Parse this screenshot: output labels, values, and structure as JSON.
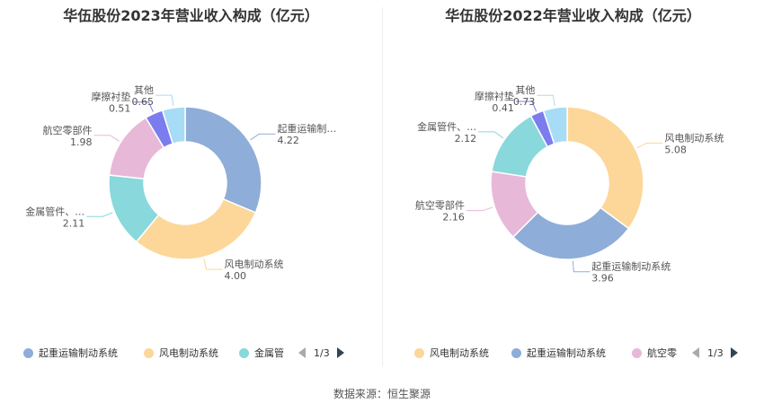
{
  "source_text": "数据来源：恒生聚源",
  "chart_data": [
    {
      "type": "pie",
      "variant": "donut",
      "title": "华伍股份2023年营业收入构成（亿元）",
      "slices": [
        {
          "name": "起重运输制动系统",
          "label": "起重运输制…",
          "value": 4.22,
          "value_text": "4.22",
          "color": "#8eadd8"
        },
        {
          "name": "风电制动系统",
          "label": "风电制动系统",
          "value": 4.0,
          "value_text": "4.00",
          "color": "#fcd799"
        },
        {
          "name": "金属管件",
          "label": "金属管件、…",
          "value": 2.11,
          "value_text": "2.11",
          "color": "#89d8db"
        },
        {
          "name": "航空零部件",
          "label": "航空零部件",
          "value": 1.98,
          "value_text": "1.98",
          "color": "#e8b8d8"
        },
        {
          "name": "摩擦衬垫",
          "label": "摩擦衬垫",
          "value": 0.51,
          "value_text": "0.51",
          "color": "#7b7cee"
        },
        {
          "name": "其他",
          "label": "其他",
          "value": 0.65,
          "value_text": "0.65",
          "color": "#a7dcf6"
        }
      ],
      "legend": {
        "items": [
          {
            "label": "起重运输制动系统",
            "color": "#8eadd8"
          },
          {
            "label": "风电制动系统",
            "color": "#fcd799"
          },
          {
            "label": "金属管",
            "color": "#89d8db"
          }
        ],
        "page": "1/3"
      }
    },
    {
      "type": "pie",
      "variant": "donut",
      "title": "华伍股份2022年营业收入构成（亿元）",
      "slices": [
        {
          "name": "风电制动系统",
          "label": "风电制动系统",
          "value": 5.08,
          "value_text": "5.08",
          "color": "#fcd799"
        },
        {
          "name": "起重运输制动系统",
          "label": "起重运输制动系统",
          "value": 3.96,
          "value_text": "3.96",
          "color": "#8eadd8"
        },
        {
          "name": "航空零部件",
          "label": "航空零部件",
          "value": 2.16,
          "value_text": "2.16",
          "color": "#e8b8d8"
        },
        {
          "name": "金属管件",
          "label": "金属管件、…",
          "value": 2.12,
          "value_text": "2.12",
          "color": "#89d8db"
        },
        {
          "name": "摩擦衬垫",
          "label": "摩擦衬垫",
          "value": 0.41,
          "value_text": "0.41",
          "color": "#7b7cee"
        },
        {
          "name": "其他",
          "label": "其他",
          "value": 0.73,
          "value_text": "0.73",
          "color": "#a7dcf6"
        }
      ],
      "legend": {
        "items": [
          {
            "label": "风电制动系统",
            "color": "#fcd799"
          },
          {
            "label": "起重运输制动系统",
            "color": "#8eadd8"
          },
          {
            "label": "航空零",
            "color": "#e8b8d8"
          }
        ],
        "page": "1/3"
      }
    }
  ]
}
